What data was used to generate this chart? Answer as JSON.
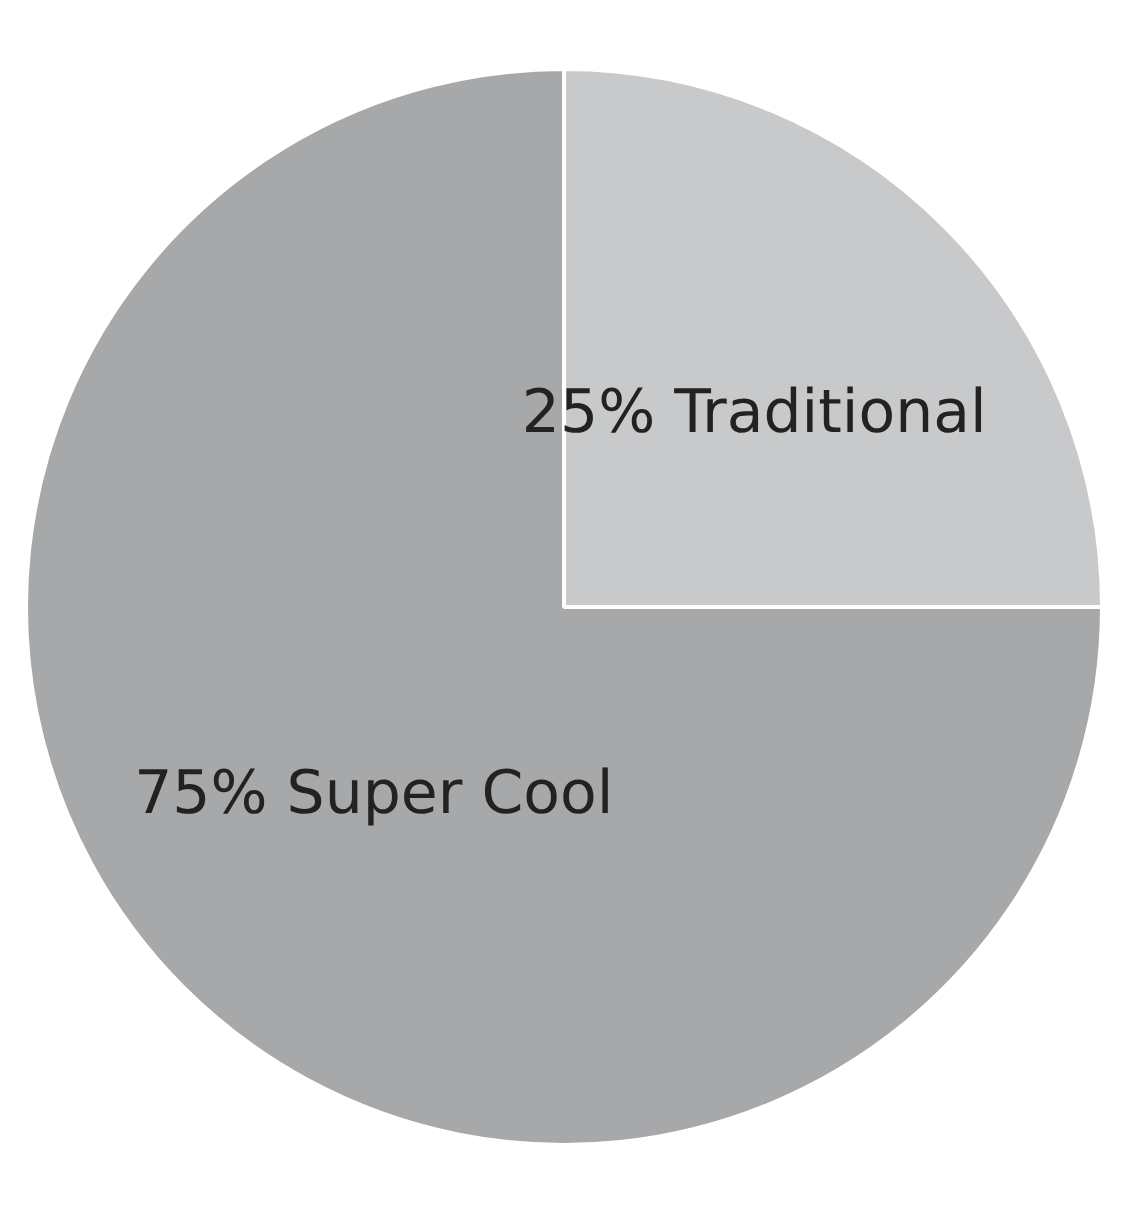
{
  "chart_data": {
    "type": "pie",
    "categories": [
      "Traditional",
      "Super Cool"
    ],
    "values": [
      25,
      75
    ],
    "colors": [
      "#c8c9cb",
      "#a7a8aa"
    ],
    "value_labels": [
      "25%",
      "75%"
    ],
    "legend": false
  }
}
